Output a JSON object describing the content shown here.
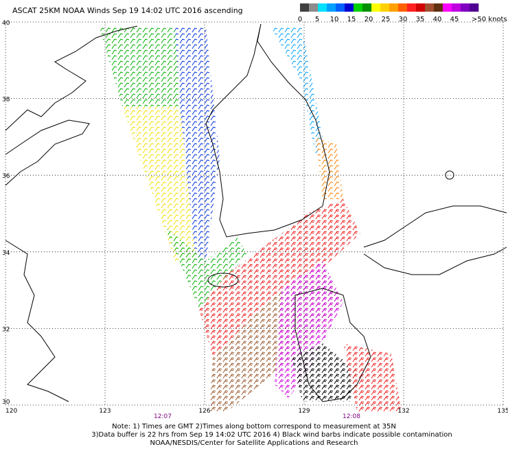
{
  "header": {
    "title": "ASCAT 25KM NOAA Winds Sep 19 14:02 UTC 2016 ascending"
  },
  "colorbar": {
    "labels": [
      "0",
      "5",
      "10",
      "15",
      "20",
      "25",
      "30",
      "35",
      "40",
      "45",
      ">50 knots"
    ],
    "colors": [
      "#404040",
      "#8c8c8c",
      "#00e0ff",
      "#00a0ff",
      "#0060ff",
      "#0000d0",
      "#00d000",
      "#009000",
      "#ffff00",
      "#ffd000",
      "#ffa000",
      "#ff6000",
      "#ff2020",
      "#d00000",
      "#a05030",
      "#603010",
      "#ff00ff",
      "#c000e0",
      "#8000c0",
      "#500090"
    ]
  },
  "map": {
    "lat_labels": [
      "40",
      "38",
      "36",
      "34",
      "32",
      "30"
    ],
    "lon_labels": [
      "120",
      "123",
      "126",
      "129",
      "132",
      "135"
    ],
    "time_labels": [
      "12:07",
      "12:08"
    ]
  },
  "notes": [
    "Note: 1) Times are GMT 2)Times along bottom correspond to measurement at 35N",
    "3)Data buffer is 22 hrs from Sep 19 14:02 UTC 2016 4) Black wind barbs indicate possible contamination",
    "NOAA/NESDIS/Center for Satellite Applications and Research"
  ]
}
